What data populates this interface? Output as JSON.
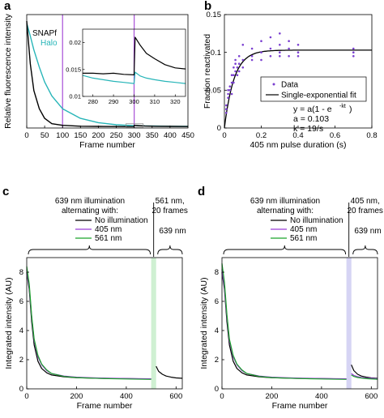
{
  "chart_data": [
    {
      "panel": "a",
      "type": "line",
      "xlabel": "Frame number",
      "ylabel": "Relative fluorescence intensity",
      "xlim": [
        0,
        450
      ],
      "x_ticks": [
        0,
        50,
        100,
        150,
        200,
        250,
        300,
        350,
        400,
        450
      ],
      "ylim": [
        0,
        1
      ],
      "y_ticks": [],
      "legend_placement": "top-left",
      "colors": {
        "SNAPf": "#000000",
        "Halo": "#27b5b8",
        "marker": "#a64fd6"
      },
      "series": [
        {
          "name": "SNAPf",
          "x": [
            0,
            10,
            20,
            35,
            50,
            70,
            100,
            150,
            200,
            250,
            299,
            300,
            310,
            330,
            360,
            400,
            450
          ],
          "y": [
            1.0,
            0.6,
            0.35,
            0.18,
            0.09,
            0.04,
            0.025,
            0.017,
            0.015,
            0.014,
            0.013,
            0.025,
            0.023,
            0.018,
            0.016,
            0.015,
            0.014
          ]
        },
        {
          "name": "Halo",
          "x": [
            0,
            10,
            20,
            35,
            50,
            70,
            100,
            150,
            200,
            250,
            299,
            300,
            310,
            330,
            360,
            400,
            450
          ],
          "y": [
            0.98,
            0.86,
            0.73,
            0.57,
            0.43,
            0.3,
            0.18,
            0.09,
            0.05,
            0.03,
            0.022,
            0.025,
            0.022,
            0.02,
            0.018,
            0.016,
            0.015
          ]
        }
      ],
      "vertical_markers_x": [
        100,
        300
      ],
      "inset": {
        "xlim": [
          275,
          325
        ],
        "x_ticks": [
          280,
          290,
          300,
          310,
          320
        ],
        "ylim": [
          0.01,
          0.0225
        ],
        "y_ticks": [
          0.01,
          0.015,
          0.02
        ],
        "series": [
          {
            "name": "SNAPf",
            "x": [
              275,
              280,
              285,
              290,
              295,
              300,
              300.5,
              303,
              306,
              310,
              315,
              320,
              325
            ],
            "y": [
              0.0143,
              0.0143,
              0.0142,
              0.0143,
              0.0141,
              0.014,
              0.021,
              0.0195,
              0.018,
              0.017,
              0.0159,
              0.0153,
              0.0151
            ]
          },
          {
            "name": "Halo",
            "x": [
              275,
              280,
              285,
              290,
              295,
              300,
              300.5,
              303,
              306,
              310,
              315,
              320,
              325
            ],
            "y": [
              0.0139,
              0.0134,
              0.0131,
              0.0128,
              0.0126,
              0.0124,
              0.0145,
              0.0138,
              0.0134,
              0.0131,
              0.0128,
              0.0126,
              0.0124
            ]
          }
        ],
        "vertical_markers_x": [
          300
        ]
      }
    },
    {
      "panel": "b",
      "type": "scatter",
      "xlabel": "405 nm pulse duration (s)",
      "ylabel": "Fraction reactivated",
      "xlim": [
        0,
        0.8
      ],
      "x_ticks": [
        0,
        0.2,
        0.4,
        0.6,
        0.8
      ],
      "ylim": [
        0,
        0.15
      ],
      "y_ticks": [
        0,
        0.05,
        0.1,
        0.15
      ],
      "legend_placement": "center-right",
      "colors": {
        "Data": "#7a3fd0",
        "fit": "#000000"
      },
      "series": [
        {
          "name": "Data",
          "x": [
            0.01,
            0.01,
            0.01,
            0.02,
            0.02,
            0.02,
            0.03,
            0.03,
            0.04,
            0.04,
            0.04,
            0.05,
            0.05,
            0.05,
            0.06,
            0.06,
            0.06,
            0.07,
            0.07,
            0.08,
            0.08,
            0.08,
            0.1,
            0.1,
            0.1,
            0.15,
            0.15,
            0.15,
            0.2,
            0.2,
            0.2,
            0.25,
            0.25,
            0.25,
            0.3,
            0.3,
            0.3,
            0.3,
            0.35,
            0.35,
            0.35,
            0.4,
            0.4,
            0.4,
            0.7,
            0.7,
            0.7
          ],
          "y": [
            0.03,
            0.02,
            0.025,
            0.05,
            0.045,
            0.04,
            0.055,
            0.05,
            0.07,
            0.045,
            0.06,
            0.08,
            0.07,
            0.06,
            0.09,
            0.085,
            0.075,
            0.08,
            0.07,
            0.095,
            0.085,
            0.075,
            0.11,
            0.09,
            0.08,
            0.105,
            0.095,
            0.09,
            0.115,
            0.1,
            0.09,
            0.12,
            0.105,
            0.095,
            0.125,
            0.11,
            0.1,
            0.095,
            0.115,
            0.105,
            0.095,
            0.11,
            0.1,
            0.095,
            0.105,
            0.1,
            0.095
          ]
        },
        {
          "name": "Single-exponential fit",
          "fit": {
            "a": 0.103,
            "k": 19
          }
        }
      ],
      "annotations": [
        "y = a(1 - e",
        "-kt",
        ")",
        "a = 0.103",
        "k = 19/s"
      ]
    },
    {
      "panel": "c",
      "type": "line",
      "xlabel": "Frame number",
      "ylabel": "Integrated intensity (AU)",
      "xlim": [
        0,
        625
      ],
      "x_ticks": [
        0,
        200,
        400,
        600
      ],
      "ylim": [
        0,
        9
      ],
      "y_ticks": [
        0,
        2,
        4,
        6,
        8
      ],
      "legend_title": [
        "639 nm illumination",
        "alternating with:"
      ],
      "legend_placement": "top",
      "colors": {
        "No illumination": "#000000",
        "405 nm": "#9b3fd6",
        "561 nm": "#1aa32a",
        "band": "#cff0d2"
      },
      "series": [
        {
          "name": "No illumination",
          "x": [
            0,
            10,
            20,
            30,
            45,
            60,
            80,
            100,
            150,
            200,
            300,
            400,
            500
          ],
          "y": [
            8.0,
            6.8,
            4.6,
            3.0,
            1.9,
            1.4,
            1.1,
            0.95,
            0.82,
            0.76,
            0.72,
            0.7,
            0.68
          ]
        },
        {
          "name": "405 nm",
          "x": [
            0,
            10,
            20,
            30,
            45,
            60,
            80,
            100,
            150,
            200,
            300,
            400,
            500
          ],
          "y": [
            8.2,
            7.0,
            4.9,
            3.3,
            2.2,
            1.65,
            1.25,
            1.05,
            0.88,
            0.8,
            0.74,
            0.71,
            0.69
          ]
        },
        {
          "name": "561 nm",
          "x": [
            0,
            10,
            20,
            30,
            45,
            60,
            80,
            100,
            150,
            200,
            300,
            400,
            500
          ],
          "y": [
            8.4,
            7.2,
            5.0,
            3.4,
            2.3,
            1.7,
            1.3,
            1.05,
            0.85,
            0.77,
            0.71,
            0.68,
            0.65
          ]
        },
        {
          "name": "No illumination (after)",
          "x": [
            520,
            530,
            545,
            560,
            580,
            600,
            625
          ],
          "y": [
            1.55,
            1.2,
            1.0,
            0.88,
            0.8,
            0.75,
            0.72
          ]
        }
      ],
      "band": {
        "x": [
          500,
          520
        ],
        "label": [
          "561 nm,",
          "20 frames"
        ]
      },
      "after_label": "639 nm"
    },
    {
      "panel": "d",
      "type": "line",
      "xlabel": "Frame number",
      "ylabel": "Integrated intensity (AU)",
      "xlim": [
        0,
        625
      ],
      "x_ticks": [
        0,
        200,
        400,
        600
      ],
      "ylim": [
        0,
        9
      ],
      "y_ticks": [
        0,
        2,
        4,
        6,
        8
      ],
      "legend_title": [
        "639 nm illumination",
        "alternating with:"
      ],
      "legend_placement": "top",
      "colors": {
        "No illumination": "#000000",
        "405 nm": "#9b3fd6",
        "561 nm": "#1aa32a",
        "band": "#d6d4f4"
      },
      "series": [
        {
          "name": "No illumination",
          "x": [
            0,
            10,
            20,
            30,
            45,
            60,
            80,
            100,
            150,
            200,
            300,
            400,
            500
          ],
          "y": [
            8.0,
            6.8,
            4.6,
            3.0,
            1.9,
            1.4,
            1.1,
            0.95,
            0.82,
            0.76,
            0.72,
            0.7,
            0.68
          ]
        },
        {
          "name": "405 nm",
          "x": [
            0,
            10,
            20,
            30,
            45,
            60,
            80,
            100,
            150,
            200,
            300,
            400,
            500
          ],
          "y": [
            8.2,
            7.0,
            4.9,
            3.3,
            2.2,
            1.65,
            1.25,
            1.05,
            0.88,
            0.8,
            0.74,
            0.71,
            0.69
          ]
        },
        {
          "name": "561 nm",
          "x": [
            0,
            10,
            20,
            30,
            45,
            60,
            80,
            100,
            150,
            200,
            300,
            400,
            500
          ],
          "y": [
            8.6,
            7.3,
            5.1,
            3.4,
            2.3,
            1.7,
            1.3,
            1.05,
            0.85,
            0.77,
            0.71,
            0.68,
            0.65
          ]
        },
        {
          "name": "No illumination (after)",
          "x": [
            520,
            530,
            545,
            560,
            580,
            600,
            625
          ],
          "y": [
            1.65,
            1.25,
            1.0,
            0.88,
            0.8,
            0.75,
            0.72
          ]
        },
        {
          "name": "405 nm (after)",
          "x": [
            520,
            530,
            545,
            560,
            580,
            600,
            625
          ],
          "y": [
            1.05,
            0.92,
            0.84,
            0.78,
            0.74,
            0.72,
            0.7
          ]
        },
        {
          "name": "561 nm (after)",
          "x": [
            520,
            530,
            545,
            560,
            580,
            600,
            625
          ],
          "y": [
            0.95,
            0.85,
            0.78,
            0.74,
            0.7,
            0.68,
            0.66
          ]
        }
      ],
      "band": {
        "x": [
          500,
          520
        ],
        "label": [
          "405 nm,",
          "20 frames"
        ]
      },
      "after_label": "639 nm"
    }
  ]
}
